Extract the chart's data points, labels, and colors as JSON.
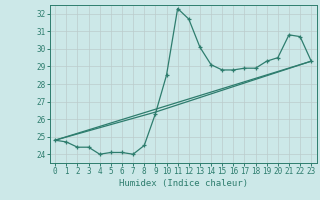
{
  "xlabel": "Humidex (Indice chaleur)",
  "bg_color": "#cce8e8",
  "grid_color": "#bbcccc",
  "line_color": "#2e7d6e",
  "xlim": [
    -0.5,
    23.5
  ],
  "ylim": [
    23.5,
    32.5
  ],
  "xticks": [
    0,
    1,
    2,
    3,
    4,
    5,
    6,
    7,
    8,
    9,
    10,
    11,
    12,
    13,
    14,
    15,
    16,
    17,
    18,
    19,
    20,
    21,
    22,
    23
  ],
  "yticks": [
    24,
    25,
    26,
    27,
    28,
    29,
    30,
    31,
    32
  ],
  "line1_x": [
    0,
    1,
    2,
    3,
    4,
    5,
    6,
    7,
    8,
    9,
    10,
    11,
    12,
    13,
    14,
    15,
    16,
    17,
    18,
    19,
    20,
    21,
    22,
    23
  ],
  "line1_y": [
    24.8,
    24.7,
    24.4,
    24.4,
    24.0,
    24.1,
    24.1,
    24.0,
    24.5,
    26.3,
    28.5,
    32.3,
    31.7,
    30.1,
    29.1,
    28.8,
    28.8,
    28.9,
    28.9,
    29.3,
    29.5,
    30.8,
    30.7,
    29.3
  ],
  "line2_x": [
    0,
    23
  ],
  "line2_y": [
    24.8,
    29.3
  ],
  "line3_x": [
    0,
    9,
    23
  ],
  "line3_y": [
    24.8,
    26.4,
    29.3
  ]
}
